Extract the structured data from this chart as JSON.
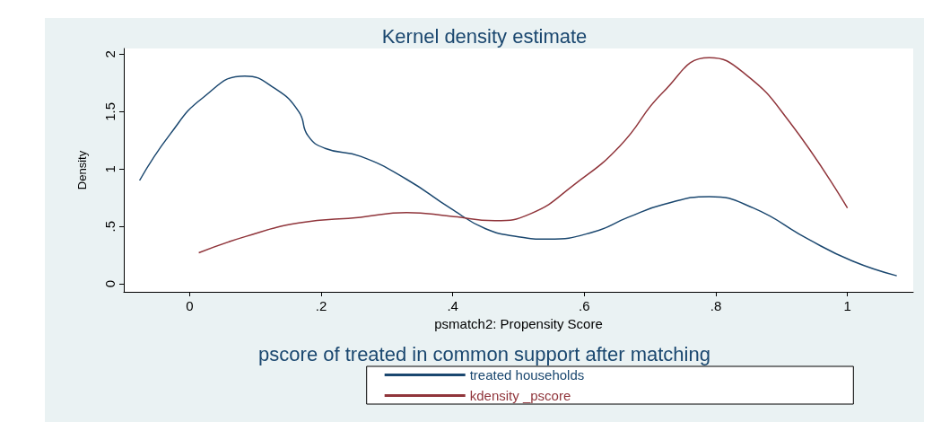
{
  "chart_data": {
    "type": "line",
    "title": "Kernel density estimate",
    "xlabel": "psmatch2: Propensity Score",
    "ylabel": "Density",
    "legend_title": "pscore of treated in common support after matching",
    "legend": "bottom",
    "grid": false,
    "marker": "none",
    "line_style": "solid",
    "xlim": [
      -0.1,
      1.1
    ],
    "ylim": [
      -0.07,
      2.05
    ],
    "xticks": [
      {
        "value": 0,
        "label": "0"
      },
      {
        "value": 0.2,
        "label": ".2"
      },
      {
        "value": 0.4,
        "label": ".4"
      },
      {
        "value": 0.6,
        "label": ".6"
      },
      {
        "value": 0.8,
        "label": ".8"
      },
      {
        "value": 1,
        "label": "1"
      }
    ],
    "yticks": [
      {
        "value": 0,
        "label": "0"
      },
      {
        "value": 0.5,
        "label": ".5"
      },
      {
        "value": 1,
        "label": "1"
      },
      {
        "value": 1.5,
        "label": "1.5"
      },
      {
        "value": 2,
        "label": "2"
      }
    ],
    "series": [
      {
        "name": "treated households",
        "color": "#1a476f",
        "x": [
          -0.076,
          -0.03,
          0.02,
          0.084,
          0.13,
          0.166,
          0.18,
          0.206,
          0.26,
          0.33,
          0.396,
          0.45,
          0.5,
          0.545,
          0.613,
          0.667,
          0.72,
          0.79,
          0.857,
          0.94,
          1.007,
          1.075
        ],
        "values": [
          0.9,
          1.3,
          1.62,
          1.81,
          1.7,
          1.5,
          1.29,
          1.18,
          1.11,
          0.91,
          0.66,
          0.48,
          0.41,
          0.39,
          0.45,
          0.58,
          0.69,
          0.76,
          0.66,
          0.39,
          0.2,
          0.07
        ]
      },
      {
        "name": "kdensity _pscore",
        "color": "#90353b",
        "x": [
          0.014,
          0.084,
          0.166,
          0.26,
          0.33,
          0.396,
          0.464,
          0.518,
          0.586,
          0.654,
          0.72,
          0.79,
          0.844,
          0.912,
          1.0
        ],
        "values": [
          0.27,
          0.41,
          0.53,
          0.58,
          0.62,
          0.59,
          0.55,
          0.61,
          0.87,
          1.2,
          1.67,
          1.97,
          1.83,
          1.41,
          0.66
        ]
      }
    ]
  }
}
